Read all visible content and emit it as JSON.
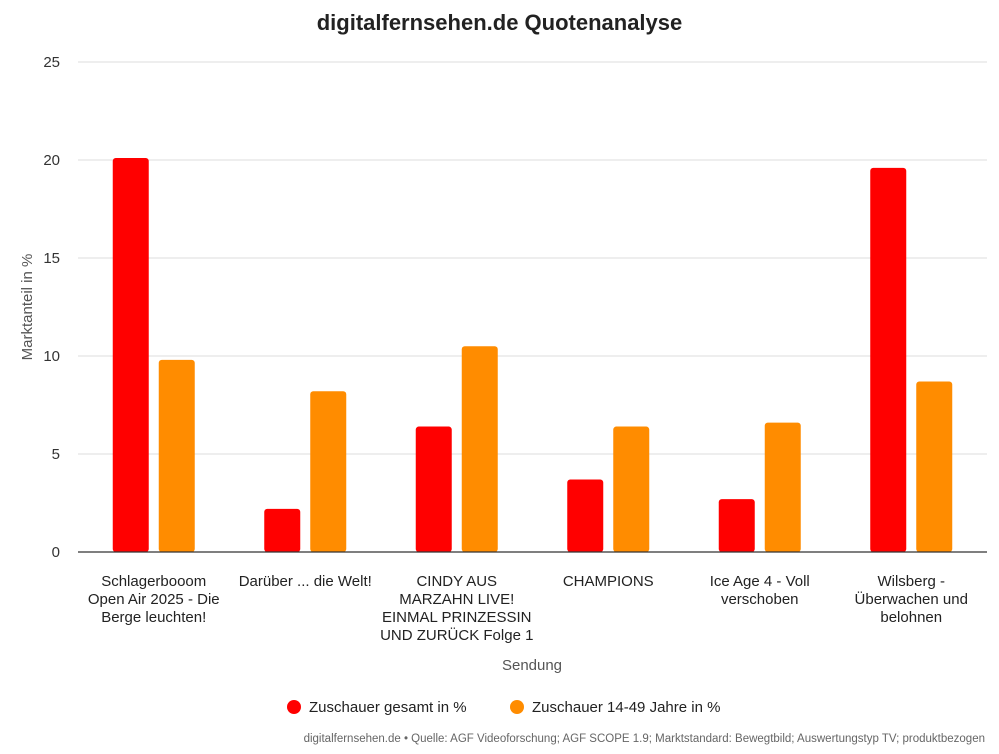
{
  "chart_data": {
    "type": "bar",
    "title": "digitalfernsehen.de Quotenanalyse",
    "xlabel": "Sendung",
    "ylabel": "Marktanteil in %",
    "ylim": [
      0,
      25
    ],
    "yticks": [
      0,
      5,
      10,
      15,
      20,
      25
    ],
    "grid": true,
    "legend_position": "bottom",
    "categories": [
      [
        "Schlagerbooom",
        "Open Air 2025 - Die",
        "Berge leuchten!"
      ],
      [
        "Darüber ... die Welt!"
      ],
      [
        "CINDY AUS",
        "MARZAHN LIVE!",
        "EINMAL PRINZESSIN",
        "UND ZURÜCK Folge 1"
      ],
      [
        "CHAMPIONS"
      ],
      [
        "Ice Age 4 - Voll",
        "verschoben"
      ],
      [
        "Wilsberg -",
        "Überwachen und",
        "belohnen"
      ]
    ],
    "series": [
      {
        "name": "Zuschauer gesamt in %",
        "color": "#ff0000",
        "values": [
          20.1,
          2.2,
          6.4,
          3.7,
          2.7,
          19.6
        ]
      },
      {
        "name": "Zuschauer 14-49 Jahre in %",
        "color": "#ff8c00",
        "values": [
          9.8,
          8.2,
          10.5,
          6.4,
          6.6,
          8.7
        ]
      }
    ]
  },
  "source_note": "digitalfernsehen.de • Quelle: AGF Videoforschung; AGF SCOPE 1.9; Marktstandard: Bewegtbild; Auswertungstyp TV; produktbezogen"
}
